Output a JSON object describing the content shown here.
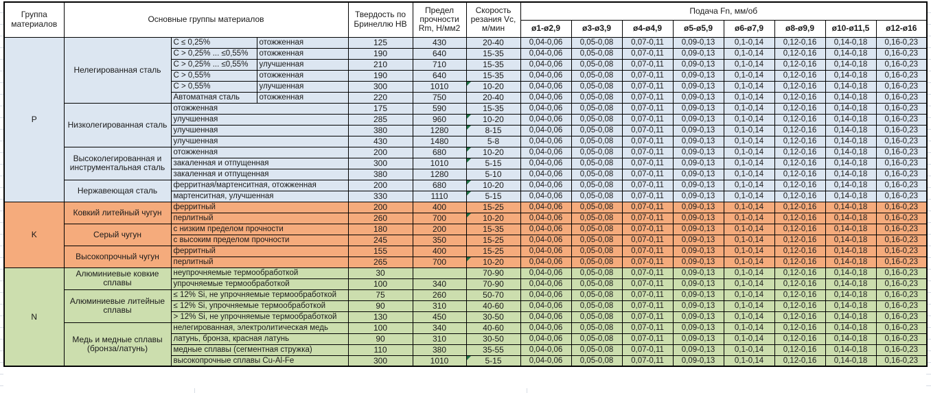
{
  "colors": {
    "group_p": "#DCE6F1",
    "group_k": "#F5AB7C",
    "group_n": "#CCDEAE",
    "marker": "#1E7145",
    "gridline": "#D6DCE4",
    "border": "#000000"
  },
  "header": {
    "col_group": "Группа материалов",
    "col_materials": "Основные группы материалов",
    "col_hb": "Твердость по Бринеллю HB",
    "col_rm": "Предел прочности Rm, Н/мм2",
    "col_vc": "Скорость резания Vc, м/мин",
    "feed_title": "Подача Fn, мм/об",
    "feed_cols": [
      "ø1-ø2,9",
      "ø3-ø3,9",
      "ø4-ø4,9",
      "ø5-ø5,9",
      "ø6-ø7,9",
      "ø8-ø9,9",
      "ø10-ø11,5",
      "ø12-ø16"
    ]
  },
  "feed_values": [
    "0,04-0,06",
    "0,05-0,08",
    "0,07-0,11",
    "0,09-0,13",
    "0,1-0,14",
    "0,12-0,16",
    "0,14-0,18",
    "0,16-0,23"
  ],
  "groups": [
    {
      "code": "P",
      "families": [
        {
          "name": "Нелегированная сталь",
          "rows": [
            {
              "spec": [
                "C ≤ 0,25%",
                "отожженная"
              ],
              "hb": "125",
              "rm": "430",
              "vc": "20-40",
              "marker": false
            },
            {
              "spec": [
                "C > 0,25% ... ≤0,55%",
                "отожженная"
              ],
              "hb": "190",
              "rm": "640",
              "vc": "15-35",
              "marker": false
            },
            {
              "spec": [
                "C > 0,25% ... ≤0,55%",
                "улучшенная"
              ],
              "hb": "210",
              "rm": "710",
              "vc": "15-35",
              "marker": false
            },
            {
              "spec": [
                "C > 0,55%",
                "отожженная"
              ],
              "hb": "190",
              "rm": "640",
              "vc": "15-35",
              "marker": false
            },
            {
              "spec": [
                "C > 0,55%",
                "улучшенная"
              ],
              "hb": "300",
              "rm": "1010",
              "vc": "10-20",
              "marker": true
            },
            {
              "spec": [
                "Автоматная сталь",
                "отожженная"
              ],
              "hb": "220",
              "rm": "750",
              "vc": "20-40",
              "marker": false
            }
          ]
        },
        {
          "name": "Низколегированная сталь",
          "rows": [
            {
              "spec": [
                "отожженная"
              ],
              "hb": "175",
              "rm": "590",
              "vc": "15-35",
              "marker": false
            },
            {
              "spec": [
                "улучшенная"
              ],
              "hb": "285",
              "rm": "960",
              "vc": "10-20",
              "marker": true
            },
            {
              "spec": [
                "улучшенная"
              ],
              "hb": "380",
              "rm": "1280",
              "vc": "8-15",
              "marker": true
            },
            {
              "spec": [
                "улучшенная"
              ],
              "hb": "430",
              "rm": "1480",
              "vc": "5-8",
              "marker": false
            }
          ]
        },
        {
          "name": "Высоколегированная и инструментальная сталь",
          "rows": [
            {
              "spec": [
                "отожженная"
              ],
              "hb": "200",
              "rm": "680",
              "vc": "10-20",
              "marker": true
            },
            {
              "spec": [
                "закаленная и отпущенная"
              ],
              "hb": "300",
              "rm": "1010",
              "vc": "5-15",
              "marker": true
            },
            {
              "spec": [
                "закаленная и отпущенная"
              ],
              "hb": "380",
              "rm": "1280",
              "vc": "5-10",
              "marker": false
            }
          ]
        },
        {
          "name": "Нержавеющая сталь",
          "rows": [
            {
              "spec": [
                "ферритная/мартенситная, отожженная"
              ],
              "hb": "200",
              "rm": "680",
              "vc": "10-20",
              "marker": true
            },
            {
              "spec": [
                "мартенситная, улучшенная"
              ],
              "hb": "330",
              "rm": "1110",
              "vc": "5-15",
              "marker": true
            }
          ]
        }
      ]
    },
    {
      "code": "K",
      "families": [
        {
          "name": "Ковкий литейный чугун",
          "rows": [
            {
              "spec": [
                "ферритный"
              ],
              "hb": "200",
              "rm": "400",
              "vc": "15-25",
              "marker": false
            },
            {
              "spec": [
                "перлитный"
              ],
              "hb": "260",
              "rm": "700",
              "vc": "10-20",
              "marker": true
            }
          ]
        },
        {
          "name": "Серый чугун",
          "rows": [
            {
              "spec": [
                "с низким пределом прочности"
              ],
              "hb": "180",
              "rm": "200",
              "vc": "15-35",
              "marker": false
            },
            {
              "spec": [
                "с высоким пределом прочности"
              ],
              "hb": "245",
              "rm": "350",
              "vc": "15-25",
              "marker": false
            }
          ]
        },
        {
          "name": "Высокопрочный чугун",
          "rows": [
            {
              "spec": [
                "ферритный"
              ],
              "hb": "155",
              "rm": "400",
              "vc": "15-25",
              "marker": false
            },
            {
              "spec": [
                "перлитный"
              ],
              "hb": "265",
              "rm": "700",
              "vc": "10-20",
              "marker": true
            }
          ]
        }
      ]
    },
    {
      "code": "N",
      "families": [
        {
          "name": "Алюминиевые ковкие сплавы",
          "rows": [
            {
              "spec": [
                "неупрочняемые термообработкой"
              ],
              "hb": "30",
              "rm": "",
              "vc": "70-90",
              "marker": false
            },
            {
              "spec": [
                "упрочняемые термообработкой"
              ],
              "hb": "100",
              "rm": "340",
              "vc": "70-90",
              "marker": false
            }
          ]
        },
        {
          "name": "Алюминиевые литейные сплавы",
          "rows": [
            {
              "spec": [
                "≤ 12% Si, не упрочняемые термообработкой"
              ],
              "hb": "75",
              "rm": "260",
              "vc": "50-70",
              "marker": false
            },
            {
              "spec": [
                "≤ 12% Si, упрочняемые термообработкой"
              ],
              "hb": "90",
              "rm": "310",
              "vc": "40-60",
              "marker": false
            },
            {
              "spec": [
                "> 12% Si, не упрочняемые термообработкой"
              ],
              "hb": "130",
              "rm": "450",
              "vc": "30-50",
              "marker": false
            }
          ]
        },
        {
          "name": "Медь и медные сплавы (бронза/латунь)",
          "rows": [
            {
              "spec": [
                "нелегированная, электролитическая медь"
              ],
              "hb": "100",
              "rm": "340",
              "vc": "40-60",
              "marker": false
            },
            {
              "spec": [
                "латунь, бронза, красная латунь"
              ],
              "hb": "90",
              "rm": "310",
              "vc": "30-50",
              "marker": false
            },
            {
              "spec": [
                "медные сплавы (сегментная стружка)"
              ],
              "hb": "110",
              "rm": "380",
              "vc": "35-55",
              "marker": false
            },
            {
              "spec": [
                "высокопрочные сплавы Cu-Al-Fe"
              ],
              "hb": "300",
              "rm": "1010",
              "vc": "5-15",
              "marker": true
            }
          ]
        }
      ]
    }
  ]
}
